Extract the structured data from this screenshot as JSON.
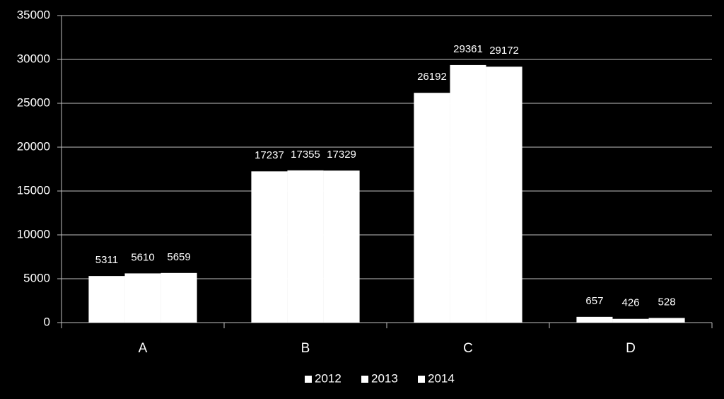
{
  "chart_data": {
    "type": "bar",
    "categories": [
      "A",
      "B",
      "C",
      "D"
    ],
    "series": [
      {
        "name": "2012",
        "color": "#ffffff",
        "values": [
          5311,
          17237,
          26192,
          657
        ]
      },
      {
        "name": "2013",
        "color": "#ffffff",
        "values": [
          5610,
          17355,
          29361,
          426
        ]
      },
      {
        "name": "2014",
        "color": "#ffffff",
        "values": [
          5659,
          17329,
          29172,
          528
        ]
      }
    ],
    "ylim": [
      0,
      35000
    ],
    "yticks": [
      0,
      5000,
      10000,
      15000,
      20000,
      25000,
      30000,
      35000
    ],
    "grid": true,
    "legend": "bottom",
    "show_values": true
  }
}
